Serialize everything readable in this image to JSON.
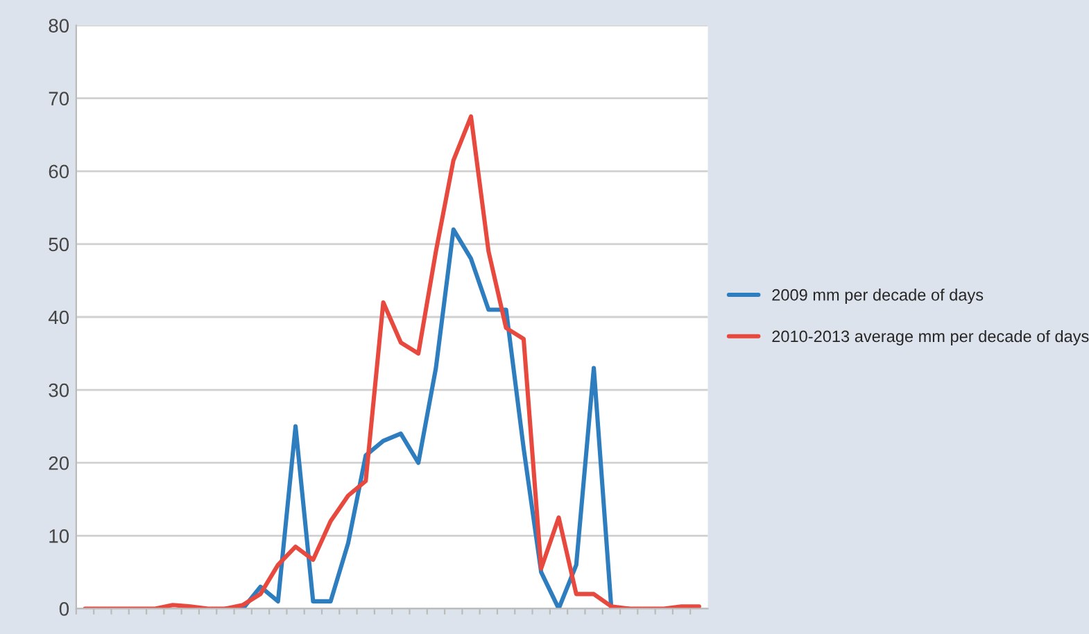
{
  "chart_data": {
    "type": "line",
    "categories": [
      null,
      null,
      null,
      null,
      null,
      null,
      null,
      null,
      null,
      null,
      null,
      null,
      null,
      null,
      null,
      null,
      null,
      null,
      null,
      null,
      null,
      null,
      null,
      null,
      null,
      null,
      null,
      null,
      null,
      null,
      null,
      null,
      null,
      null,
      null,
      null
    ],
    "series": [
      {
        "name": "2009 mm per decade of days",
        "color": "#2e7ebf",
        "values": [
          null,
          null,
          null,
          null,
          null,
          null,
          null,
          null,
          0,
          0,
          3,
          1,
          25,
          1,
          1,
          9,
          21,
          23,
          24,
          20,
          33,
          52,
          48,
          41,
          41,
          22,
          5,
          0,
          6,
          33,
          0,
          0,
          null,
          null,
          null,
          null
        ]
      },
      {
        "name": "2010-2013 average mm per decade of days",
        "color": "#e8493e",
        "values": [
          0,
          0,
          0,
          0,
          0,
          0.5,
          0.3,
          0,
          0,
          0.5,
          2,
          6,
          8.5,
          6.7,
          12,
          15.5,
          17.5,
          42,
          36.5,
          35,
          49,
          61.5,
          67.5,
          49,
          38.5,
          37,
          5.5,
          12.5,
          2,
          2,
          0.3,
          0,
          0,
          0,
          0.3,
          0.3
        ]
      }
    ],
    "ylim": [
      0,
      80
    ],
    "yticks": [
      0,
      10,
      20,
      30,
      40,
      50,
      60,
      70,
      80
    ],
    "grid": "y",
    "legend": "right",
    "tick_labels": "y",
    "marker": "none",
    "line_style": "solid"
  }
}
